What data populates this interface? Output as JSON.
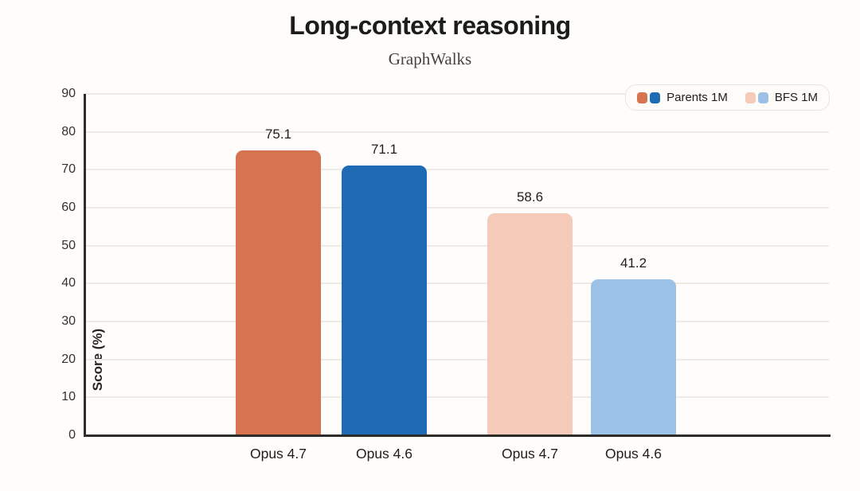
{
  "chart_data": {
    "type": "bar",
    "title": "Long-context reasoning",
    "subtitle": "GraphWalks",
    "ylabel": "Score (%)",
    "ylim": [
      0,
      90
    ],
    "yticks": [
      0,
      10,
      20,
      30,
      40,
      50,
      60,
      70,
      80,
      90
    ],
    "grid": "horizontal",
    "legend_position": "top-right",
    "categories": [
      "Opus 4.7",
      "Opus 4.6",
      "Opus 4.7",
      "Opus 4.6"
    ],
    "bars": [
      {
        "label": "Opus 4.7",
        "series": "Parents 1M",
        "value": 75.1,
        "value_label": "75.1",
        "color": "#d5744e"
      },
      {
        "label": "Opus 4.6",
        "series": "Parents 1M",
        "value": 71.1,
        "value_label": "71.1",
        "color": "#1e6bb3"
      },
      {
        "label": "Opus 4.7",
        "series": "BFS 1M",
        "value": 58.6,
        "value_label": "58.6",
        "color": "#f5cab8"
      },
      {
        "label": "Opus 4.6",
        "series": "BFS 1M",
        "value": 41.2,
        "value_label": "41.2",
        "color": "#9cc1e7"
      }
    ],
    "series": [
      {
        "name": "Parents 1M",
        "values": [
          75.1,
          71.1
        ],
        "colors": [
          "#d5744e",
          "#1e6bb3"
        ]
      },
      {
        "name": "BFS 1M",
        "values": [
          58.6,
          41.2
        ],
        "colors": [
          "#f5cab8",
          "#9cc1e7"
        ]
      }
    ],
    "legend": [
      {
        "label": "Parents 1M",
        "colors": [
          "#d5744e",
          "#1e6bb3"
        ]
      },
      {
        "label": "BFS 1M",
        "colors": [
          "#f5cab8",
          "#9cc1e7"
        ]
      }
    ]
  },
  "colors": {
    "background": "#fefdfb",
    "axis": "#2e2c29",
    "gridline": "#eeebe4",
    "title_text": "#1c1c1a",
    "subtitle_text": "#44433f",
    "legend_border": "#e8e4db",
    "legend_bg": "#fdfcf9"
  }
}
